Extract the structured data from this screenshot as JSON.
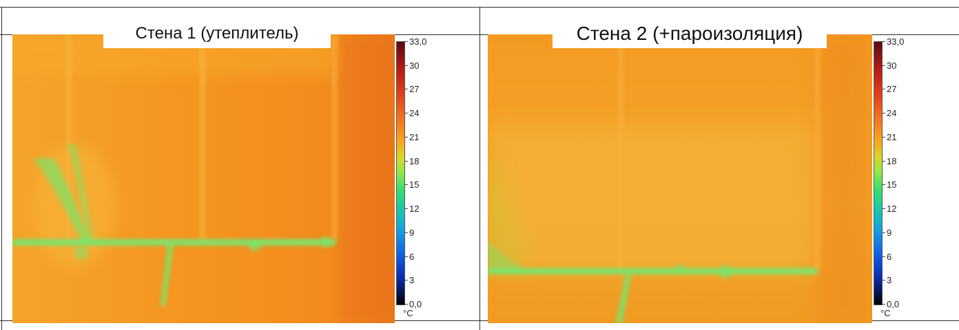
{
  "panels": [
    {
      "title": "Стена 1 (утеплитель)"
    },
    {
      "title": "Стена 2 (+пароизоляция)"
    }
  ],
  "scale": {
    "ticks": [
      "33,0",
      "30",
      "27",
      "24",
      "21",
      "18",
      "15",
      "12",
      "9",
      "6",
      "3",
      "0,0"
    ],
    "unit": "°C"
  },
  "colors": {
    "warm": "#f59a1f",
    "bridge": "#7be36a",
    "max": "#5a0a12",
    "min": "#000000"
  }
}
